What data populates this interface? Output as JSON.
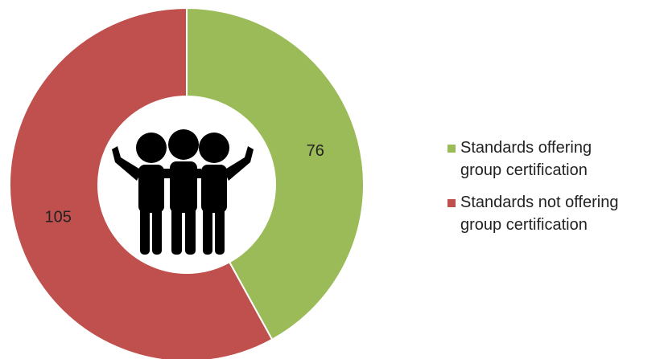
{
  "chart_data": {
    "type": "donut",
    "categories": [
      "Standards offering group certification",
      "Standards not offering group certification"
    ],
    "values": [
      76,
      105
    ],
    "colors": [
      "#9bbb59",
      "#c0504d"
    ],
    "legend": "right"
  }
}
